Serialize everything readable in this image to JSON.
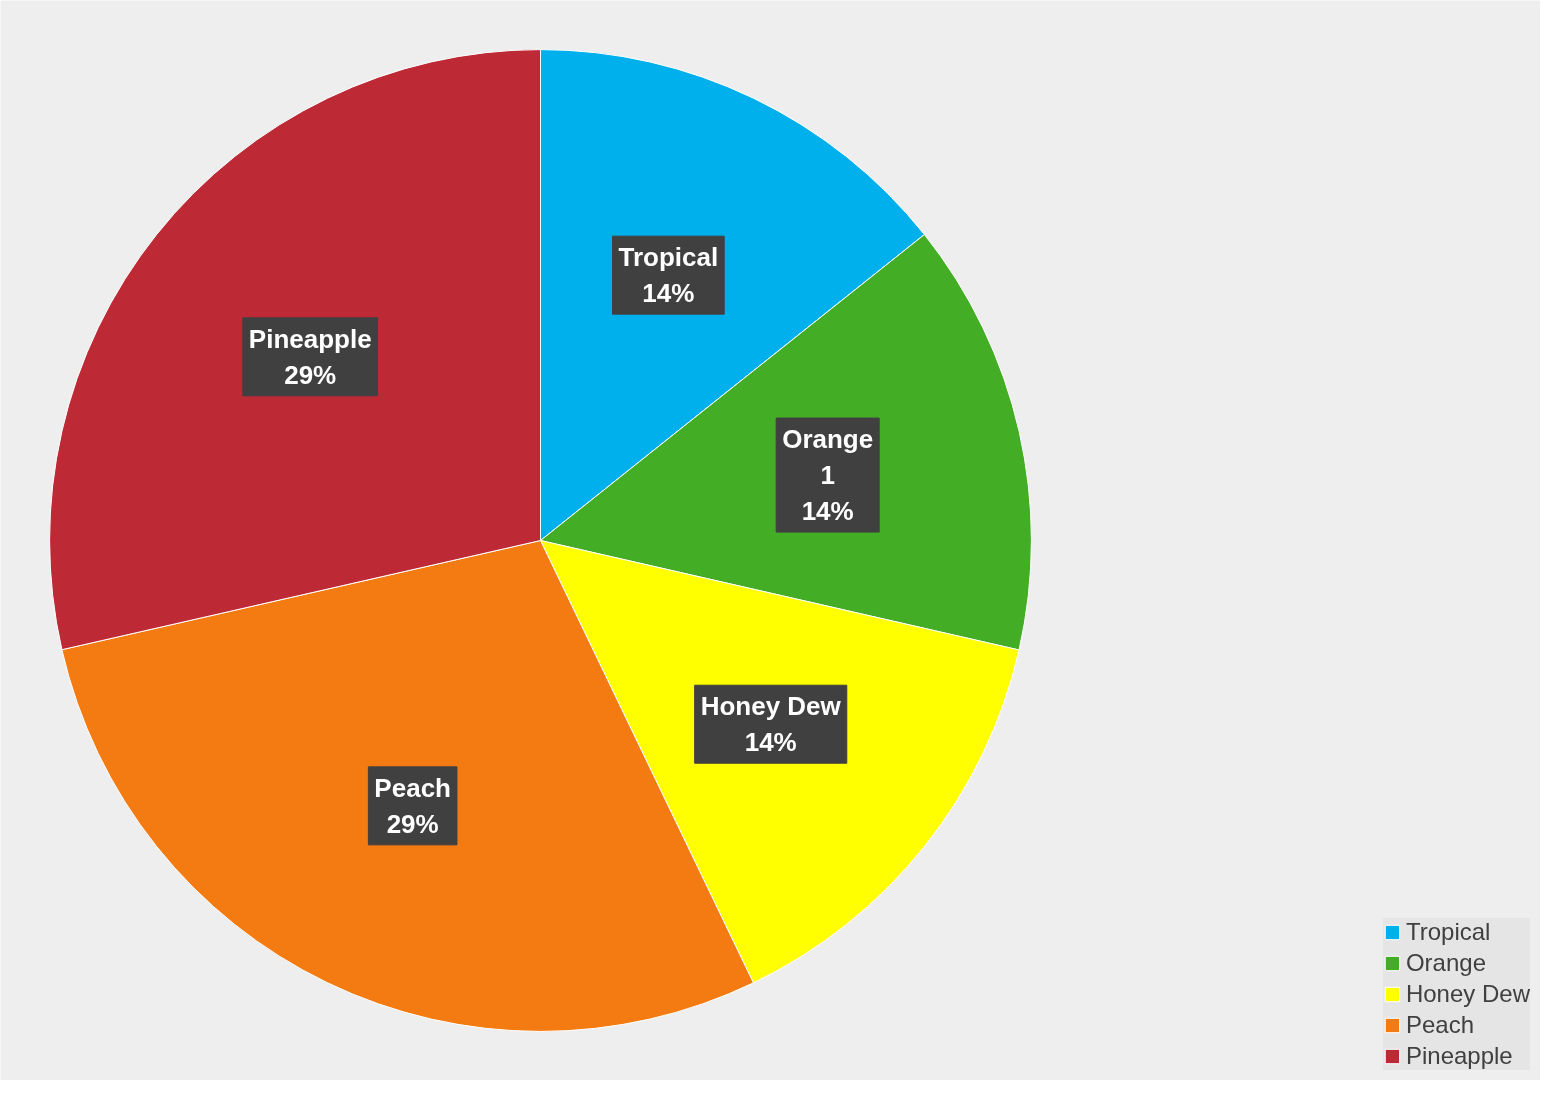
{
  "chart_data": {
    "type": "pie",
    "categories": [
      "Tropical",
      "Orange",
      "Honey Dew",
      "Peach",
      "Pineapple"
    ],
    "values": [
      14.29,
      14.29,
      14.28,
      28.57,
      28.57
    ],
    "value_labels": [
      "14%",
      "1\n14%",
      "14%",
      "29%",
      "29%"
    ],
    "colors": [
      "#00b0ec",
      "#43ae25",
      "#ffff00",
      "#f47b12",
      "#bd2a36"
    ],
    "legend": "bottom right"
  }
}
